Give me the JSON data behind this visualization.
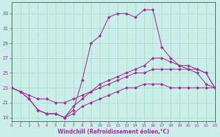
{
  "xlabel": "Windchill (Refroidissement éolien,°C)",
  "background_color": "#cceee8",
  "line_color": "#993399",
  "grid_color": "#aaddcc",
  "hours": [
    0,
    1,
    2,
    3,
    4,
    5,
    6,
    7,
    8,
    9,
    10,
    11,
    12,
    13,
    14,
    15,
    16,
    17,
    18,
    19,
    20,
    21,
    22,
    23
  ],
  "line1": [
    23,
    22.5,
    21.5,
    20,
    19.5,
    19.5,
    19,
    20,
    24,
    29,
    30,
    32.5,
    33,
    33,
    32.5,
    33.5,
    33.5,
    28.5,
    27,
    26,
    25.5,
    25,
    23.5,
    23
  ],
  "line2": [
    23,
    22.5,
    21.5,
    20,
    19.5,
    19.5,
    19,
    20.5,
    21.5,
    22.5,
    23.5,
    24,
    24.5,
    25,
    25.5,
    26,
    27,
    27,
    26.5,
    26,
    26,
    25.5,
    25,
    23
  ],
  "line3": [
    23,
    22.5,
    22,
    21.5,
    21.5,
    21,
    21,
    21.5,
    22,
    22.5,
    23,
    23.5,
    24,
    24.5,
    25,
    25,
    25.5,
    25.5,
    25.5,
    25.5,
    25.5,
    25.5,
    25,
    23
  ],
  "line4": [
    23,
    22.5,
    21.5,
    20,
    19.5,
    19.5,
    19,
    19.5,
    20.5,
    21,
    21.5,
    22,
    22.5,
    23,
    23,
    23.5,
    23.5,
    23.5,
    23,
    23,
    23,
    23,
    23,
    23
  ],
  "xlim": [
    0,
    23
  ],
  "ylim": [
    18.5,
    34.5
  ],
  "yticks": [
    19,
    21,
    23,
    25,
    27,
    29,
    31,
    33
  ],
  "xticks": [
    0,
    1,
    2,
    3,
    4,
    5,
    6,
    7,
    8,
    9,
    10,
    11,
    12,
    13,
    14,
    15,
    16,
    17,
    18,
    19,
    20,
    21,
    22,
    23
  ],
  "xtick_labels": [
    "0",
    "1",
    "2",
    "3",
    "4",
    "5",
    "6",
    "7",
    "8",
    "9",
    "10",
    "11",
    "12",
    "13",
    "14",
    "15",
    "16",
    "17",
    "18",
    "19",
    "20",
    "21",
    "22",
    "23"
  ]
}
